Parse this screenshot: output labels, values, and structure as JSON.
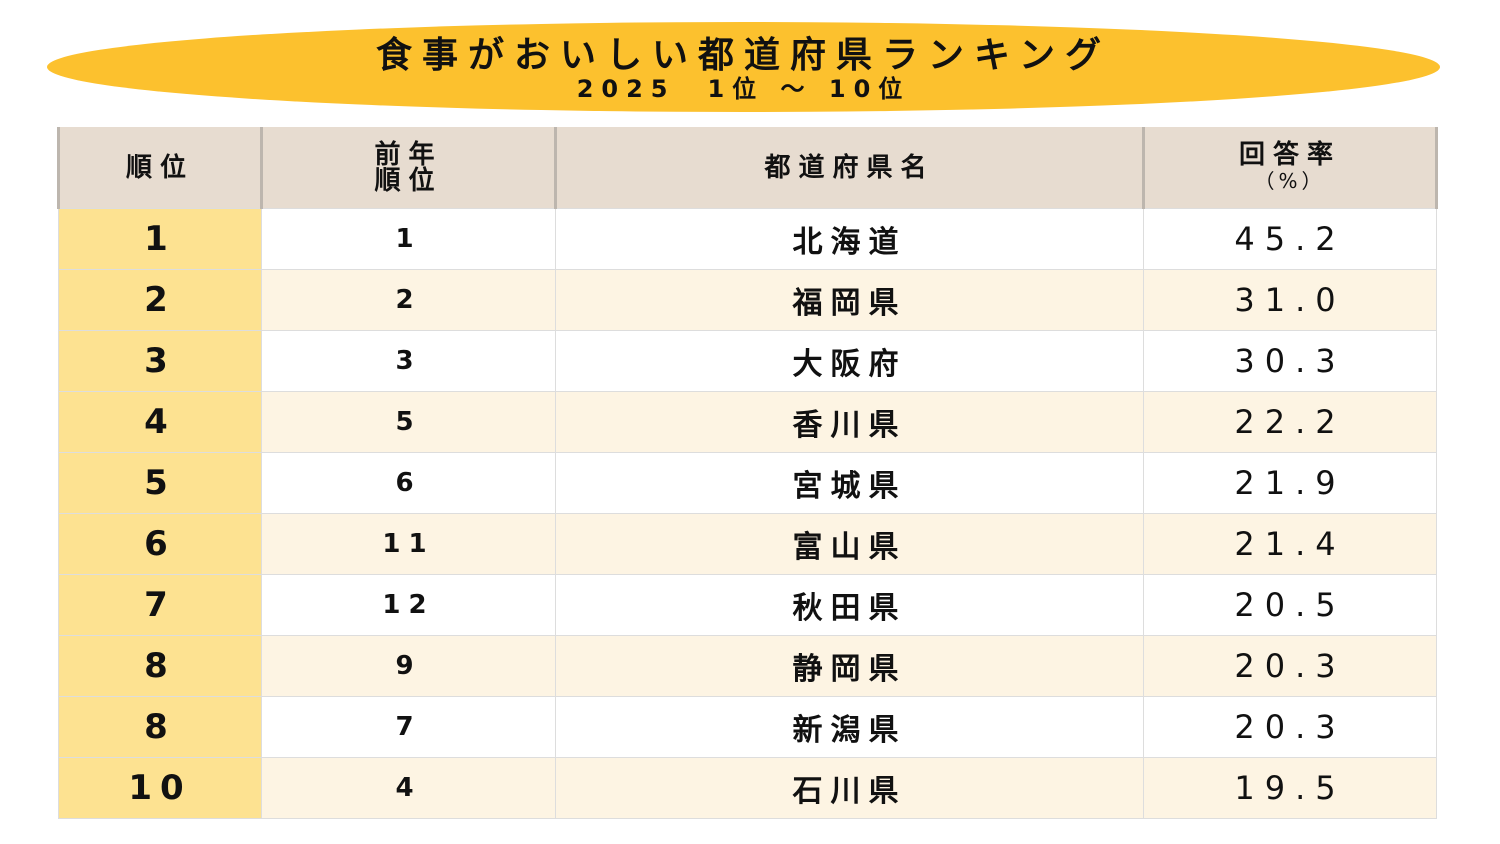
{
  "title": "食事がおいしい都道府県ランキング",
  "subtitle": "2025　1位 ～ 10位",
  "headers": {
    "rank": "順位",
    "prev_line1": "前年",
    "prev_line2": "順位",
    "prefecture": "都道府県名",
    "rate_line1": "回答率",
    "rate_line2": "（%）"
  },
  "rows": [
    {
      "rank": "1",
      "prev": "1",
      "prefecture": "北海道",
      "rate": "45.2"
    },
    {
      "rank": "2",
      "prev": "2",
      "prefecture": "福岡県",
      "rate": "31.0"
    },
    {
      "rank": "3",
      "prev": "3",
      "prefecture": "大阪府",
      "rate": "30.3"
    },
    {
      "rank": "4",
      "prev": "5",
      "prefecture": "香川県",
      "rate": "22.2"
    },
    {
      "rank": "5",
      "prev": "6",
      "prefecture": "宮城県",
      "rate": "21.9"
    },
    {
      "rank": "6",
      "prev": "11",
      "prefecture": "富山県",
      "rate": "21.4"
    },
    {
      "rank": "7",
      "prev": "12",
      "prefecture": "秋田県",
      "rate": "20.5"
    },
    {
      "rank": "8",
      "prev": "9",
      "prefecture": "静岡県",
      "rate": "20.3"
    },
    {
      "rank": "8",
      "prev": "7",
      "prefecture": "新潟県",
      "rate": "20.3"
    },
    {
      "rank": "10",
      "prev": "4",
      "prefecture": "石川県",
      "rate": "19.5"
    }
  ],
  "colors": {
    "banner": "#fcc12e",
    "header": "#e7dcd0",
    "rank_cell": "#fde291",
    "alt_row": "#fdf4e3"
  }
}
